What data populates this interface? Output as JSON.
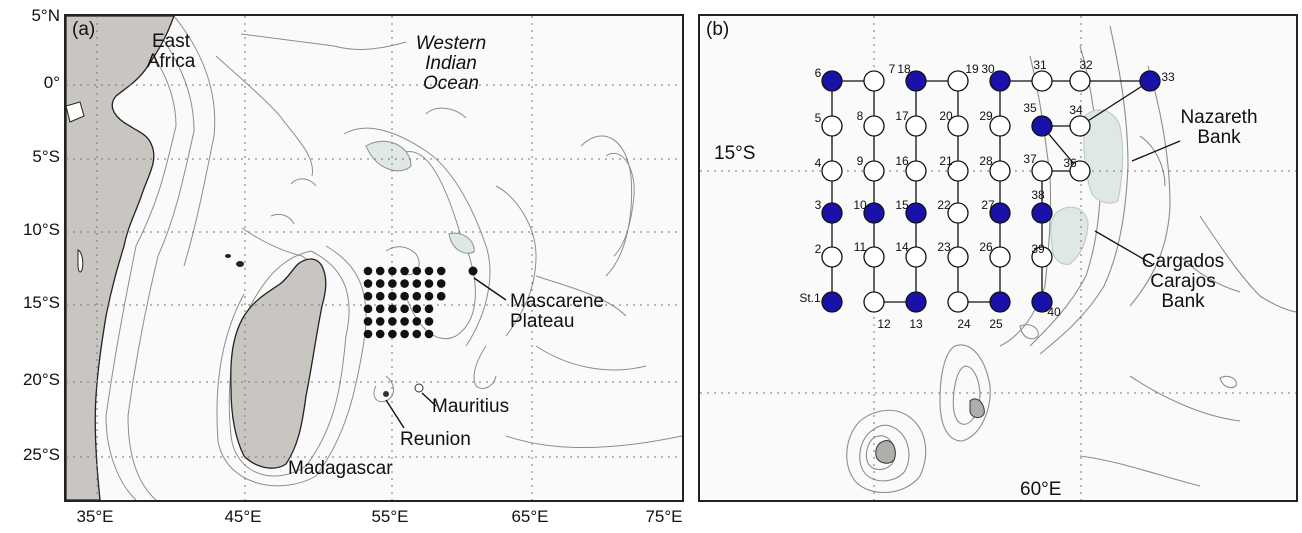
{
  "panel_a": {
    "tag": "(a)",
    "lat_labels": [
      "5°N",
      "0°",
      "5°S",
      "10°S",
      "15°S",
      "20°S",
      "25°S"
    ],
    "lon_labels": [
      "35°E",
      "45°E",
      "55°E",
      "65°E",
      "75°E"
    ],
    "labels": {
      "east_africa": [
        "East",
        "Africa"
      ],
      "ocean": [
        "Western",
        "Indian",
        "Ocean"
      ],
      "mascarene": [
        "Mascarene",
        "Plateau"
      ],
      "mauritius": "Mauritius",
      "reunion": "Reunion",
      "madagascar": "Madagascar"
    }
  },
  "panel_b": {
    "tag": "(b)",
    "lat_label": "15°S",
    "lon_label": "60°E",
    "labels": {
      "nazareth": [
        "Nazareth",
        "Bank"
      ],
      "cargados": [
        "Cargados",
        "Carajos",
        "Bank"
      ]
    },
    "stations": [
      {
        "id": "St.1",
        "col": 0,
        "row": 5,
        "filled": true
      },
      {
        "id": "2",
        "col": 0,
        "row": 4,
        "filled": false
      },
      {
        "id": "3",
        "col": 0,
        "row": 3,
        "filled": true
      },
      {
        "id": "4",
        "col": 0,
        "row": 2,
        "filled": false
      },
      {
        "id": "5",
        "col": 0,
        "row": 1,
        "filled": false
      },
      {
        "id": "6",
        "col": 0,
        "row": 0,
        "filled": true
      },
      {
        "id": "7",
        "col": 1,
        "row": 0,
        "filled": false
      },
      {
        "id": "8",
        "col": 1,
        "row": 1,
        "filled": false
      },
      {
        "id": "9",
        "col": 1,
        "row": 2,
        "filled": false
      },
      {
        "id": "10",
        "col": 1,
        "row": 3,
        "filled": true
      },
      {
        "id": "11",
        "col": 1,
        "row": 4,
        "filled": false
      },
      {
        "id": "12",
        "col": 1,
        "row": 5,
        "filled": false
      },
      {
        "id": "13",
        "col": 2,
        "row": 5,
        "filled": true
      },
      {
        "id": "14",
        "col": 2,
        "row": 4,
        "filled": false
      },
      {
        "id": "15",
        "col": 2,
        "row": 3,
        "filled": true
      },
      {
        "id": "16",
        "col": 2,
        "row": 2,
        "filled": false
      },
      {
        "id": "17",
        "col": 2,
        "row": 1,
        "filled": false
      },
      {
        "id": "18",
        "col": 2,
        "row": 0,
        "filled": true
      },
      {
        "id": "19",
        "col": 3,
        "row": 0,
        "filled": false
      },
      {
        "id": "20",
        "col": 3,
        "row": 1,
        "filled": false
      },
      {
        "id": "21",
        "col": 3,
        "row": 2,
        "filled": false
      },
      {
        "id": "22",
        "col": 3,
        "row": 3,
        "filled": false
      },
      {
        "id": "23",
        "col": 3,
        "row": 4,
        "filled": false
      },
      {
        "id": "24",
        "col": 3,
        "row": 5,
        "filled": false
      },
      {
        "id": "25",
        "col": 4,
        "row": 5,
        "filled": true
      },
      {
        "id": "26",
        "col": 4,
        "row": 4,
        "filled": false
      },
      {
        "id": "27",
        "col": 4,
        "row": 3,
        "filled": true
      },
      {
        "id": "28",
        "col": 4,
        "row": 2,
        "filled": false
      },
      {
        "id": "29",
        "col": 4,
        "row": 1,
        "filled": false
      },
      {
        "id": "30",
        "col": 4,
        "row": 0,
        "filled": true
      },
      {
        "id": "31",
        "col": 5,
        "row": 0,
        "filled": false
      },
      {
        "id": "32",
        "col": 6,
        "row": 0,
        "filled": false
      },
      {
        "id": "33",
        "col": 7,
        "row": 0,
        "filled": true
      },
      {
        "id": "34",
        "col": 6,
        "row": 1,
        "filled": false
      },
      {
        "id": "35",
        "col": 5,
        "row": 1,
        "filled": true
      },
      {
        "id": "36",
        "col": 6,
        "row": 2,
        "filled": false
      },
      {
        "id": "37",
        "col": 5,
        "row": 2,
        "filled": false
      },
      {
        "id": "38",
        "col": 5,
        "row": 3,
        "filled": true
      },
      {
        "id": "39",
        "col": 5,
        "row": 4,
        "filled": false
      },
      {
        "id": "40",
        "col": 5,
        "row": 5,
        "filled": true
      }
    ]
  },
  "colors": {
    "land": "#c9c6c1",
    "shallow": "#dfe8e6",
    "station_filled": "#1a12a8",
    "contour": "#8d8d8d"
  }
}
